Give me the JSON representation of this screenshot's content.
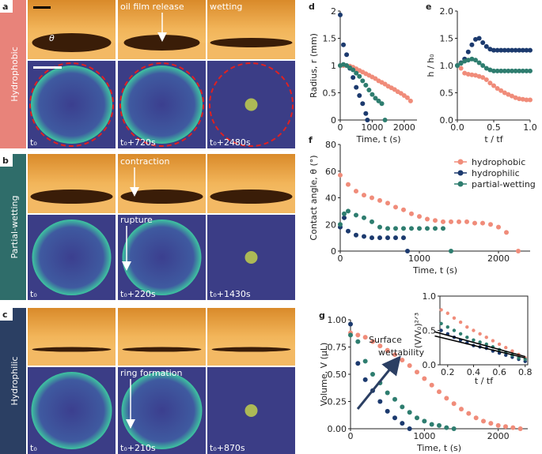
{
  "figure": {
    "panels": [
      {
        "letter": "a",
        "label": "Hydrophobic",
        "captions": [
          "oil film release",
          "wetting"
        ],
        "theta": "θ",
        "times": [
          "t₀",
          "t₀+720s",
          "t₀+2480s"
        ]
      },
      {
        "letter": "b",
        "label": "Partial-wetting",
        "captions": [
          "contraction",
          "rupture"
        ],
        "times": [
          "t₀",
          "t₀+220s",
          "t₀+1430s"
        ]
      },
      {
        "letter": "c",
        "label": "Hydrophilic",
        "captions": [
          "ring formation"
        ],
        "times": [
          "t₀",
          "t₀+210s",
          "t₀+870s"
        ]
      }
    ]
  },
  "chart_data": [
    {
      "type": "scatter",
      "letter": "d",
      "xlabel": "Time, t (s)",
      "ylabel": "Radius, r (mm)",
      "xlim": [
        0,
        2400
      ],
      "ylim": [
        0,
        2
      ],
      "xticks": [
        0,
        1000,
        2000
      ],
      "yticks": [
        0,
        0.5,
        1,
        1.5,
        2
      ],
      "series": [
        {
          "color": "#f08c7a",
          "x": [
            0,
            100,
            200,
            300,
            400,
            500,
            600,
            700,
            800,
            900,
            1000,
            1100,
            1200,
            1300,
            1400,
            1500,
            1600,
            1700,
            1800,
            1900,
            2000,
            2100,
            2200
          ],
          "values": [
            1.0,
            1.0,
            1.0,
            0.99,
            0.97,
            0.94,
            0.91,
            0.88,
            0.85,
            0.82,
            0.79,
            0.76,
            0.72,
            0.69,
            0.66,
            0.62,
            0.59,
            0.56,
            0.52,
            0.49,
            0.45,
            0.41,
            0.35
          ]
        },
        {
          "color": "#1c3a6e",
          "x": [
            0,
            100,
            200,
            300,
            400,
            500,
            600,
            700,
            800,
            850
          ],
          "values": [
            1.93,
            1.38,
            1.2,
            0.95,
            0.78,
            0.6,
            0.45,
            0.3,
            0.12,
            0.0
          ]
        },
        {
          "color": "#2e7d6f",
          "x": [
            0,
            100,
            200,
            300,
            400,
            500,
            600,
            700,
            800,
            900,
            1000,
            1100,
            1200,
            1300,
            1400
          ],
          "values": [
            1.0,
            1.02,
            1.0,
            0.96,
            0.92,
            0.86,
            0.8,
            0.72,
            0.64,
            0.55,
            0.47,
            0.4,
            0.35,
            0.3,
            0.0
          ]
        }
      ]
    },
    {
      "type": "scatter",
      "letter": "e",
      "xlabel": "t / tf",
      "ylabel": "h / h₀",
      "xlim": [
        0,
        1.0
      ],
      "ylim": [
        0,
        2
      ],
      "xticks": [
        {
          "value": 0,
          "label": "0.0"
        },
        {
          "value": 0.5,
          "label": "0.5"
        },
        {
          "value": 1,
          "label": "1.0"
        }
      ],
      "yticks": [
        {
          "value": 0,
          "label": "0.0"
        },
        {
          "value": 0.5,
          "label": "0.5"
        },
        {
          "value": 1,
          "label": "1.0"
        },
        {
          "value": 1.5,
          "label": "1.5"
        },
        {
          "value": 2,
          "label": "2.0"
        }
      ],
      "series": [
        {
          "color": "#f08c7a",
          "x": [
            0,
            0.05,
            0.1,
            0.15,
            0.2,
            0.25,
            0.3,
            0.35,
            0.4,
            0.45,
            0.5,
            0.55,
            0.6,
            0.65,
            0.7,
            0.75,
            0.8,
            0.85,
            0.9,
            0.95,
            1.0
          ],
          "values": [
            1.0,
            0.95,
            0.86,
            0.84,
            0.83,
            0.82,
            0.8,
            0.78,
            0.74,
            0.68,
            0.63,
            0.58,
            0.54,
            0.5,
            0.47,
            0.44,
            0.41,
            0.39,
            0.38,
            0.37,
            0.37
          ]
        },
        {
          "color": "#1c3a6e",
          "x": [
            0,
            0.05,
            0.1,
            0.15,
            0.2,
            0.25,
            0.3,
            0.35,
            0.4,
            0.45,
            0.5,
            0.55,
            0.6,
            0.65,
            0.7,
            0.75,
            0.8,
            0.85,
            0.9,
            0.95,
            1.0
          ],
          "values": [
            1.0,
            1.05,
            1.12,
            1.25,
            1.38,
            1.48,
            1.5,
            1.42,
            1.35,
            1.3,
            1.28,
            1.28,
            1.28,
            1.28,
            1.28,
            1.28,
            1.28,
            1.28,
            1.28,
            1.28,
            1.28
          ]
        },
        {
          "color": "#2e7d6f",
          "x": [
            0,
            0.05,
            0.1,
            0.15,
            0.2,
            0.25,
            0.3,
            0.35,
            0.4,
            0.45,
            0.5,
            0.55,
            0.6,
            0.65,
            0.7,
            0.75,
            0.8,
            0.85,
            0.9,
            0.95,
            1.0
          ],
          "values": [
            1.0,
            1.04,
            1.08,
            1.1,
            1.12,
            1.1,
            1.05,
            1.0,
            0.95,
            0.92,
            0.9,
            0.9,
            0.9,
            0.9,
            0.9,
            0.9,
            0.9,
            0.9,
            0.9,
            0.9,
            0.9
          ]
        }
      ]
    },
    {
      "type": "scatter",
      "letter": "f",
      "xlabel": "Time, t (s)",
      "ylabel": "Contact angle, θ (°)",
      "xlim": [
        0,
        2400
      ],
      "ylim": [
        0,
        80
      ],
      "xticks": [
        0,
        1000,
        2000
      ],
      "yticks": [
        0,
        20,
        40,
        60,
        80
      ],
      "legend": "upper right",
      "series": [
        {
          "name": "hydrophobic",
          "color": "#f08c7a",
          "x": [
            0,
            100,
            200,
            300,
            400,
            500,
            600,
            700,
            800,
            900,
            1000,
            1100,
            1200,
            1300,
            1400,
            1500,
            1600,
            1700,
            1800,
            1900,
            2000,
            2100,
            2250
          ],
          "values": [
            57,
            50,
            45,
            42,
            40,
            38,
            36,
            33,
            31,
            28,
            26,
            24,
            23,
            22,
            22,
            22,
            22,
            21,
            21,
            20,
            18,
            14,
            0
          ]
        },
        {
          "name": "hydrophilic",
          "color": "#1c3a6e",
          "x": [
            0,
            50,
            100,
            200,
            300,
            400,
            500,
            600,
            700,
            800,
            850
          ],
          "values": [
            18,
            25,
            15,
            12,
            11,
            10,
            10,
            10,
            10,
            10,
            0
          ]
        },
        {
          "name": "partial-wetting",
          "color": "#2e7d6f",
          "x": [
            0,
            50,
            100,
            200,
            300,
            400,
            500,
            600,
            700,
            800,
            900,
            1000,
            1100,
            1200,
            1300,
            1400
          ],
          "values": [
            20,
            28,
            30,
            27,
            25,
            22,
            18,
            17,
            17,
            17,
            17,
            17,
            17,
            17,
            17,
            0
          ]
        }
      ]
    },
    {
      "type": "scatter",
      "letter": "g",
      "xlabel": "Time, t (s)",
      "ylabel": "Volume, V (μL)",
      "xlim": [
        0,
        2400
      ],
      "ylim": [
        0,
        1.0
      ],
      "xticks": [
        0,
        1000,
        2000
      ],
      "yticks": [
        {
          "value": 0,
          "label": "0.00"
        },
        {
          "value": 0.25,
          "label": "0.25"
        },
        {
          "value": 0.5,
          "label": "0.50"
        },
        {
          "value": 0.75,
          "label": "0.75"
        },
        {
          "value": 1,
          "label": "1.00"
        }
      ],
      "annotation": [
        "Surface",
        "wettability"
      ],
      "series": [
        {
          "color": "#f08c7a",
          "x": [
            0,
            100,
            200,
            300,
            400,
            500,
            600,
            700,
            800,
            900,
            1000,
            1100,
            1200,
            1300,
            1400,
            1500,
            1600,
            1700,
            1800,
            1900,
            2000,
            2100,
            2200,
            2300
          ],
          "values": [
            0.88,
            0.86,
            0.84,
            0.8,
            0.76,
            0.72,
            0.68,
            0.63,
            0.58,
            0.52,
            0.46,
            0.4,
            0.34,
            0.28,
            0.23,
            0.18,
            0.14,
            0.1,
            0.07,
            0.05,
            0.03,
            0.02,
            0.01,
            0.0
          ]
        },
        {
          "color": "#1c3a6e",
          "x": [
            0,
            100,
            200,
            300,
            400,
            500,
            600,
            700,
            800
          ],
          "values": [
            0.96,
            0.6,
            0.45,
            0.35,
            0.25,
            0.16,
            0.1,
            0.05,
            0.0
          ]
        },
        {
          "color": "#2e7d6f",
          "x": [
            0,
            100,
            200,
            300,
            400,
            500,
            600,
            700,
            800,
            900,
            1000,
            1100,
            1200,
            1300,
            1400
          ],
          "values": [
            0.86,
            0.8,
            0.62,
            0.5,
            0.42,
            0.33,
            0.27,
            0.2,
            0.15,
            0.1,
            0.07,
            0.04,
            0.03,
            0.01,
            0.0
          ]
        }
      ]
    },
    {
      "type": "scatter",
      "xlabel": "t / tf",
      "ylabel": "(V/V₀)²ᐟ³",
      "xlim": [
        0.14,
        0.82
      ],
      "ylim": [
        0,
        1.0
      ],
      "xticks": [
        0.2,
        0.4,
        0.6,
        0.8
      ],
      "yticks": [
        {
          "value": 0,
          "label": "0.0"
        },
        {
          "value": 0.5,
          "label": "0.5"
        },
        {
          "value": 1,
          "label": "1.0"
        }
      ],
      "series": [
        {
          "color": "#f08c7a",
          "x": [
            0.15,
            0.2,
            0.25,
            0.3,
            0.35,
            0.4,
            0.45,
            0.5,
            0.55,
            0.6,
            0.65,
            0.7,
            0.75,
            0.8
          ],
          "values": [
            0.8,
            0.75,
            0.68,
            0.62,
            0.55,
            0.5,
            0.45,
            0.4,
            0.35,
            0.3,
            0.25,
            0.2,
            0.15,
            0.1
          ]
        },
        {
          "color": "#1c3a6e",
          "x": [
            0.15,
            0.2,
            0.25,
            0.3,
            0.35,
            0.4,
            0.45,
            0.5,
            0.55,
            0.6,
            0.65,
            0.7,
            0.75,
            0.8
          ],
          "values": [
            0.5,
            0.45,
            0.4,
            0.36,
            0.32,
            0.28,
            0.26,
            0.24,
            0.2,
            0.17,
            0.14,
            0.11,
            0.08,
            0.05
          ]
        },
        {
          "color": "#2e7d6f",
          "x": [
            0.15,
            0.2,
            0.25,
            0.3,
            0.35,
            0.4,
            0.45,
            0.5,
            0.55,
            0.6,
            0.65,
            0.7,
            0.75,
            0.8
          ],
          "values": [
            0.6,
            0.55,
            0.5,
            0.45,
            0.4,
            0.36,
            0.33,
            0.3,
            0.26,
            0.22,
            0.18,
            0.14,
            0.1,
            0.08
          ]
        },
        {
          "color": "#000000",
          "style": "line",
          "x": [
            0.1,
            0.8
          ],
          "values": [
            0.48,
            0.12
          ]
        },
        {
          "color": "#000000",
          "style": "line",
          "x": [
            0.1,
            0.8
          ],
          "values": [
            0.42,
            0.1
          ]
        }
      ]
    }
  ]
}
